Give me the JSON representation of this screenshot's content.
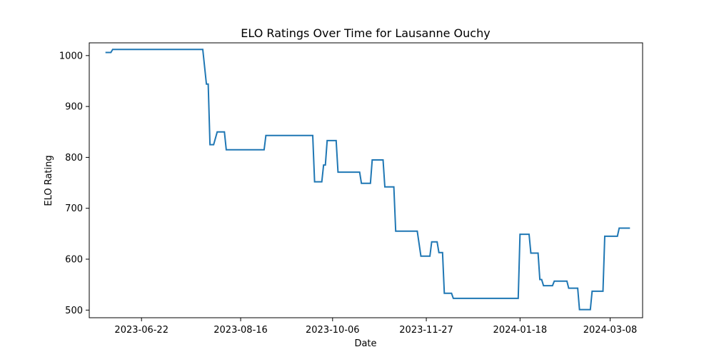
{
  "chart_data": {
    "type": "line",
    "title": "ELO Ratings Over Time for Lausanne Ouchy",
    "xlabel": "Date",
    "ylabel": "ELO Rating",
    "xlim": [
      "2023-05-24",
      "2024-03-26"
    ],
    "ylim": [
      485,
      1025
    ],
    "x_ticks": [
      "2023-06-22",
      "2023-08-16",
      "2023-10-06",
      "2023-11-27",
      "2024-01-18",
      "2024-03-08"
    ],
    "y_ticks": [
      500,
      600,
      700,
      800,
      900,
      1000
    ],
    "grid": false,
    "legend": "none",
    "series": [
      {
        "color": "#1f77b4",
        "points": [
          [
            "2023-06-02",
            1006
          ],
          [
            "2023-06-05",
            1006
          ],
          [
            "2023-06-06",
            1012
          ],
          [
            "2023-06-09",
            1012
          ],
          [
            "2023-07-23",
            1012
          ],
          [
            "2023-07-26",
            1012
          ],
          [
            "2023-07-28",
            944
          ],
          [
            "2023-07-29",
            944
          ],
          [
            "2023-07-30",
            825
          ],
          [
            "2023-08-01",
            825
          ],
          [
            "2023-08-03",
            850
          ],
          [
            "2023-08-07",
            850
          ],
          [
            "2023-08-08",
            815
          ],
          [
            "2023-08-15",
            815
          ],
          [
            "2023-08-29",
            815
          ],
          [
            "2023-08-30",
            843
          ],
          [
            "2023-09-01",
            843
          ],
          [
            "2023-09-25",
            843
          ],
          [
            "2023-09-26",
            752
          ],
          [
            "2023-09-28",
            752
          ],
          [
            "2023-09-30",
            752
          ],
          [
            "2023-10-01",
            785
          ],
          [
            "2023-10-02",
            785
          ],
          [
            "2023-10-03",
            833
          ],
          [
            "2023-10-08",
            833
          ],
          [
            "2023-10-09",
            771
          ],
          [
            "2023-10-21",
            771
          ],
          [
            "2023-10-22",
            749
          ],
          [
            "2023-10-27",
            749
          ],
          [
            "2023-10-28",
            795
          ],
          [
            "2023-11-03",
            795
          ],
          [
            "2023-11-04",
            742
          ],
          [
            "2023-11-09",
            742
          ],
          [
            "2023-11-10",
            655
          ],
          [
            "2023-11-22",
            655
          ],
          [
            "2023-11-24",
            606
          ],
          [
            "2023-11-29",
            606
          ],
          [
            "2023-11-30",
            634
          ],
          [
            "2023-12-03",
            634
          ],
          [
            "2023-12-04",
            613
          ],
          [
            "2023-12-06",
            613
          ],
          [
            "2023-12-07",
            533
          ],
          [
            "2023-12-11",
            533
          ],
          [
            "2023-12-12",
            523
          ],
          [
            "2024-01-14",
            523
          ],
          [
            "2024-01-17",
            523
          ],
          [
            "2024-01-18",
            649
          ],
          [
            "2024-01-23",
            649
          ],
          [
            "2024-01-24",
            612
          ],
          [
            "2024-01-28",
            612
          ],
          [
            "2024-01-29",
            560
          ],
          [
            "2024-01-30",
            560
          ],
          [
            "2024-01-31",
            548
          ],
          [
            "2024-02-05",
            548
          ],
          [
            "2024-02-06",
            557
          ],
          [
            "2024-02-13",
            557
          ],
          [
            "2024-02-14",
            543
          ],
          [
            "2024-02-19",
            543
          ],
          [
            "2024-02-20",
            501
          ],
          [
            "2024-02-26",
            501
          ],
          [
            "2024-02-27",
            537
          ],
          [
            "2024-03-04",
            537
          ],
          [
            "2024-03-05",
            645
          ],
          [
            "2024-03-12",
            645
          ],
          [
            "2024-03-13",
            661
          ],
          [
            "2024-03-19",
            661
          ]
        ]
      }
    ]
  }
}
